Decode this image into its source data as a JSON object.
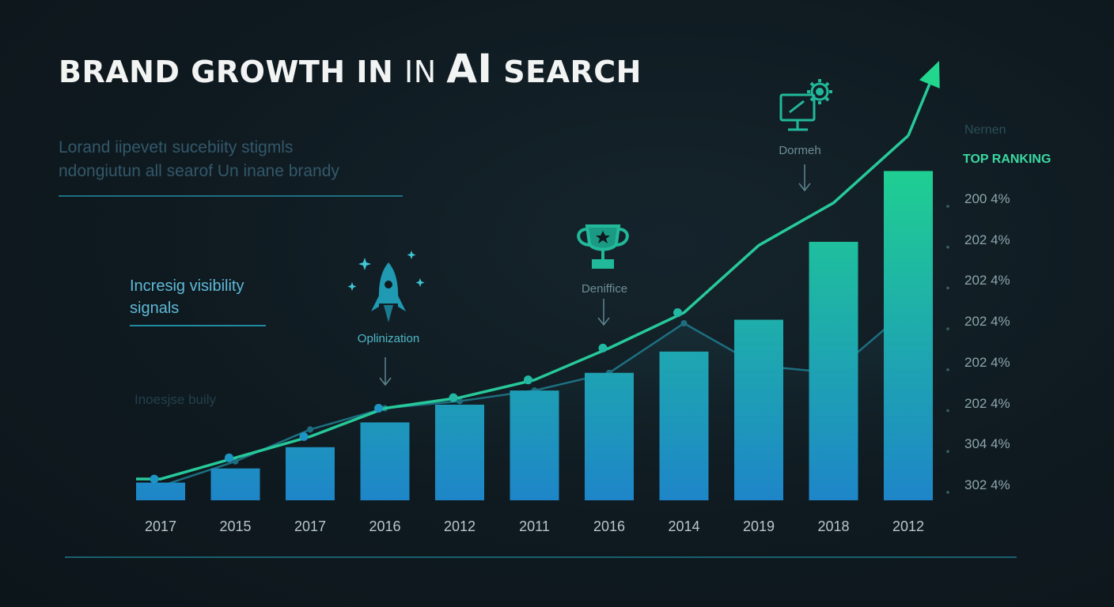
{
  "header": {
    "title_part1": "BRAND GROWTH IN ",
    "title_part2": "IN ",
    "title_part3": "AI",
    "title_part4": " SEARCH",
    "subtitle_line1": "Lorand iipevetı sucebiity stigmls",
    "subtitle_line2": "ndongiutun all searof Un inane brandy"
  },
  "side": {
    "label_line1": "Incresig visibility",
    "label_line2": "signals",
    "faint_label": "Inoesjse buily"
  },
  "right_axis": {
    "heading": "Nernen",
    "highlight": "TOP RANKING",
    "ticks": [
      "200 4%",
      "202 4%",
      "202 4%",
      "202 4%",
      "202 4%",
      "202 4%",
      "304 4%",
      "302 4%"
    ]
  },
  "annotations": {
    "rocket": "Oplinization",
    "trophy": "Deniffice",
    "monitor": "Dormeh"
  },
  "colors": {
    "bar_bottom": "#1e86c8",
    "bar_top": "#1fd48e",
    "line": "#27c99a",
    "accent_teal": "#22b6c8"
  },
  "icons": [
    "sparkle-icon",
    "rocket-icon",
    "trophy-icon",
    "monitor-gear-icon",
    "arrow-up-icon"
  ],
  "chart_data": {
    "type": "bar",
    "categories": [
      "2017",
      "2015",
      "2017",
      "2016",
      "2012",
      "2011",
      "2016",
      "2014",
      "2019",
      "2018",
      "2012"
    ],
    "values": [
      5,
      9,
      15,
      22,
      27,
      31,
      36,
      42,
      51,
      73,
      93
    ],
    "line": [
      6,
      12,
      18,
      26,
      29,
      34,
      43,
      53,
      72,
      84,
      103
    ],
    "shadow": [
      4,
      11,
      20,
      26,
      28,
      31,
      36,
      50,
      38,
      36,
      54
    ],
    "ylim": [
      0,
      100
    ],
    "grid": false,
    "legend": "none"
  }
}
